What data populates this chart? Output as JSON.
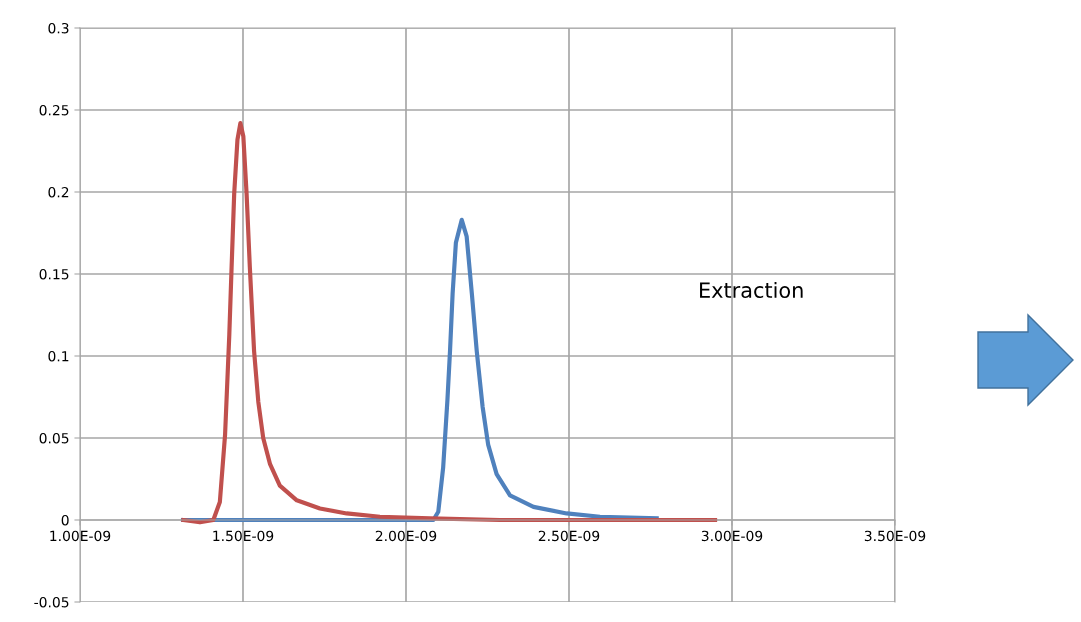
{
  "chart_data": {
    "type": "line",
    "xlim": [
      1e-09,
      3.5e-09
    ],
    "xticks": [
      {
        "value": 1e-09,
        "label": "1.00E-09"
      },
      {
        "value": 1.5e-09,
        "label": "1.50E-09"
      },
      {
        "value": 2e-09,
        "label": "2.00E-09"
      },
      {
        "value": 2.5e-09,
        "label": "2.50E-09"
      },
      {
        "value": 3e-09,
        "label": "3.00E-09"
      },
      {
        "value": 3.5e-09,
        "label": "3.50E-09"
      }
    ],
    "ylim": [
      -0.05,
      0.3
    ],
    "yticks": [
      -0.05,
      0,
      0.05,
      0.1,
      0.15,
      0.2,
      0.25,
      0.3
    ],
    "grid": true,
    "marker": "none",
    "line_style": "solid",
    "annotations": [
      "Extraction"
    ],
    "series": [
      {
        "color": "#4f81bd",
        "x": [
          1.316e-09,
          2.084e-09,
          2.099e-09,
          2.114e-09,
          2.127e-09,
          2.135e-09,
          2.143e-09,
          2.153e-09,
          2.171e-09,
          2.186e-09,
          2.202e-09,
          2.217e-09,
          2.235e-09,
          2.252e-09,
          2.278e-09,
          2.319e-09,
          2.391e-09,
          2.493e-09,
          2.595e-09,
          2.769e-09
        ],
        "values": [
          0,
          0,
          0.005,
          0.032,
          0.073,
          0.103,
          0.138,
          0.169,
          0.183,
          0.173,
          0.138,
          0.103,
          0.069,
          0.046,
          0.028,
          0.015,
          0.008,
          0.004,
          0.002,
          0.001
        ]
      },
      {
        "color": "#c0504d",
        "x": [
          1.317e-09,
          1.368e-09,
          1.409e-09,
          1.429e-09,
          1.445e-09,
          1.458e-09,
          1.465e-09,
          1.473e-09,
          1.483e-09,
          1.492e-09,
          1.501e-09,
          1.511e-09,
          1.521e-09,
          1.534e-09,
          1.547e-09,
          1.562e-09,
          1.583e-09,
          1.613e-09,
          1.665e-09,
          1.736e-09,
          1.818e-09,
          1.92e-09,
          2.074e-09,
          2.288e-09,
          2.595e-09,
          2.948e-09
        ],
        "values": [
          0,
          -0.0014,
          0,
          0.011,
          0.052,
          0.113,
          0.154,
          0.199,
          0.232,
          0.242,
          0.234,
          0.199,
          0.154,
          0.103,
          0.072,
          0.05,
          0.034,
          0.021,
          0.012,
          0.007,
          0.004,
          0.002,
          0.001,
          0,
          0,
          0
        ]
      }
    ]
  }
}
